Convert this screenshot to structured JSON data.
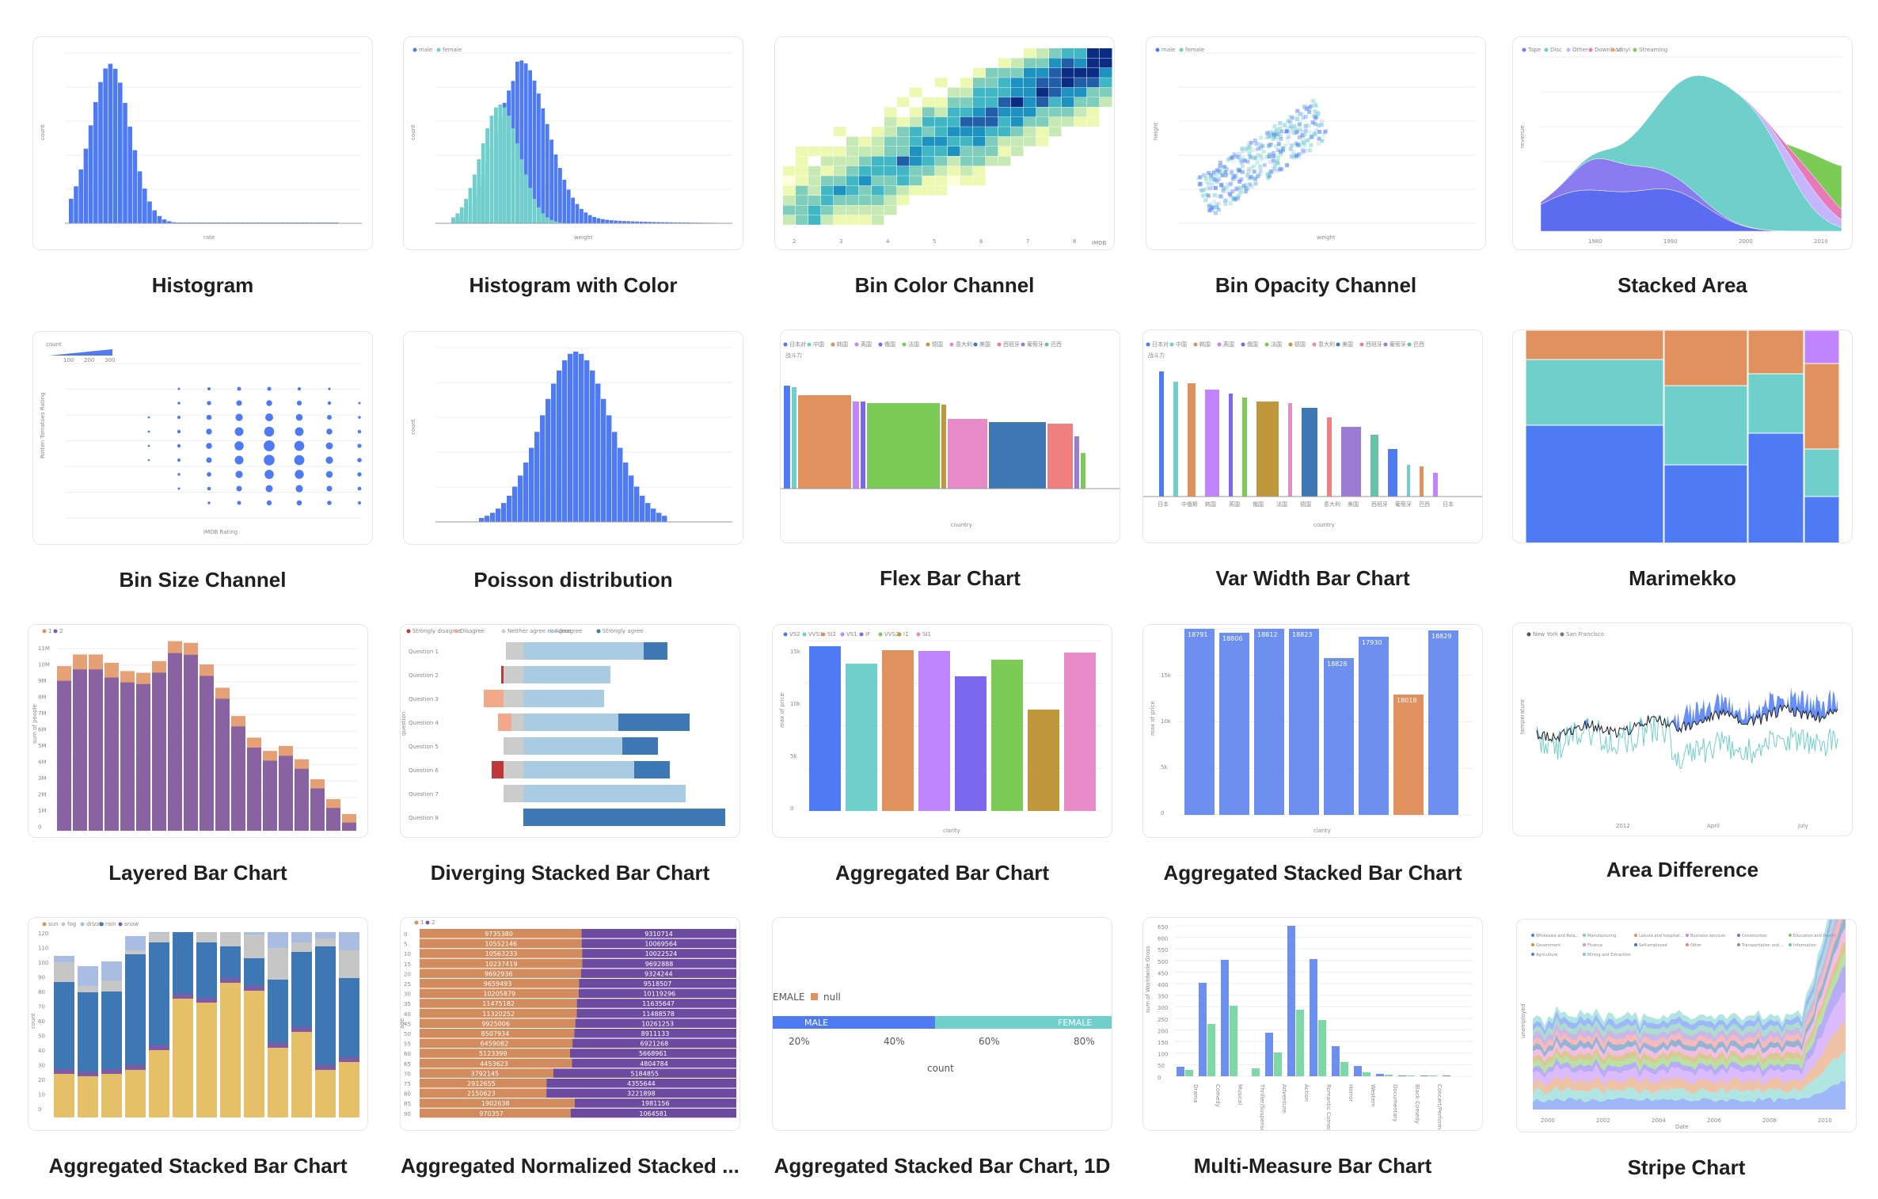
{
  "gallery": {
    "items": [
      {
        "key": "histogram",
        "title": "Histogram"
      },
      {
        "key": "histogram_color",
        "title": "Histogram with Color"
      },
      {
        "key": "bin_color",
        "title": "Bin Color Channel"
      },
      {
        "key": "bin_opacity",
        "title": "Bin Opacity Channel"
      },
      {
        "key": "stacked_area",
        "title": "Stacked Area"
      },
      {
        "key": "bin_size",
        "title": "Bin Size Channel"
      },
      {
        "key": "poisson",
        "title": "Poisson distribution"
      },
      {
        "key": "flex_bar",
        "title": "Flex Bar Chart"
      },
      {
        "key": "var_width_bar",
        "title": "Var Width Bar Chart"
      },
      {
        "key": "marimekko",
        "title": "Marimekko"
      },
      {
        "key": "layered_bar",
        "title": "Layered Bar Chart"
      },
      {
        "key": "diverging_bar",
        "title": "Diverging Stacked Bar Chart"
      },
      {
        "key": "aggregated_bar",
        "title": "Aggregated Bar Chart"
      },
      {
        "key": "agg_stacked_bar",
        "title": "Aggregated Stacked Bar Chart"
      },
      {
        "key": "area_difference",
        "title": "Area Difference"
      },
      {
        "key": "agg_stacked_bar_weather",
        "title": "Aggregated Stacked Bar Chart"
      },
      {
        "key": "agg_normalized_bar",
        "title": "Aggregated Normalized Stacked ..."
      },
      {
        "key": "agg_stacked_bar_1d",
        "title": "Aggregated Stacked Bar Chart, 1D"
      },
      {
        "key": "multi_measure_bar",
        "title": "Multi-Measure Bar Chart"
      },
      {
        "key": "stripe_chart",
        "title": "Stripe Chart"
      }
    ]
  },
  "colors": {
    "blue": "#4e7bf4",
    "teal": "#6fcfcb",
    "orange": "#e0915d",
    "purple": "#7d5ba6",
    "red": "#c0373a",
    "sand": "#e6c069",
    "lightblue": "#a9cce3",
    "darkblue": "#3d77b4"
  },
  "thumbs": {
    "histogram": {
      "x_label": "rate",
      "y_label": "count"
    },
    "histogram_color": {
      "legend": [
        "male",
        "female"
      ],
      "x_label": "weight",
      "y_label": "count"
    },
    "bin_color": {
      "x_ticks": [
        "2",
        "3",
        "4",
        "5",
        "6",
        "7",
        "8"
      ],
      "x_label": "IMDB"
    },
    "bin_opacity": {
      "legend": [
        "male",
        "female"
      ],
      "x_label": "weight",
      "y_label": "height"
    },
    "stacked_area": {
      "legend": [
        "Tape",
        "Disc",
        "Other",
        "Download",
        "Vinyl",
        "Streaming"
      ],
      "x_ticks": [
        "1980",
        "1990",
        "2000",
        "2010"
      ],
      "y_label": "revenue"
    },
    "bin_size": {
      "legend_title": "count",
      "legend_ticks": [
        "100",
        "200",
        "300"
      ],
      "x_label": "IMDB Rating",
      "y_label": "Rotten Tomatoes Rating"
    },
    "poisson": {
      "y_label": "count"
    },
    "flex_bar": {
      "legend": [
        "日本对",
        "中国",
        "韩国",
        "英国",
        "俄国",
        "法国",
        "德国",
        "意大利",
        "美国",
        "西班牙",
        "葡萄牙",
        "巴西"
      ],
      "sublabel": "战斗力",
      "x_label": "country"
    },
    "var_width_bar": {
      "legend": [
        "日本对",
        "中国",
        "韩国",
        "英国",
        "俄国",
        "法国",
        "德国",
        "意大利",
        "美国",
        "西班牙",
        "葡萄牙",
        "巴西"
      ],
      "sublabel": "战斗力",
      "x_label": "country",
      "x_ticks": [
        "日本",
        "中俄斯",
        "韩国",
        "英国",
        "俄国",
        "法国",
        "德国",
        "意大利",
        "美国",
        "西班牙",
        "葡萄牙",
        "巴西",
        "日本"
      ]
    },
    "layered_bar": {
      "legend": [
        "1",
        "2"
      ],
      "y_ticks": [
        "11M",
        "10M",
        "9M",
        "8M",
        "7M",
        "6M",
        "5M",
        "4M",
        "3M",
        "2M",
        "1M",
        "0"
      ],
      "y_label": "sum of people"
    },
    "diverging_bar": {
      "legend": [
        "Strongly disagree",
        "Disagree",
        "Neither agree nor disagree",
        "Agree",
        "Strongly agree"
      ],
      "questions": [
        "Question 1",
        "Question 2",
        "Question 3",
        "Question 4",
        "Question 5",
        "Question 6",
        "Question 7",
        "Question 8"
      ],
      "y_label": "question"
    },
    "aggregated_bar": {
      "legend": [
        "VS2",
        "VVS1",
        "SI2",
        "VS1",
        "IF",
        "VVS2",
        "I1",
        "SI1"
      ],
      "y_label": "max of price",
      "y_ticks": [
        "15k",
        "10k",
        "5k",
        "0"
      ],
      "x_label": "clarity"
    },
    "agg_stacked_bar": {
      "values": [
        "18791",
        "18806",
        "18812",
        "18823",
        "18828",
        "17930",
        "18018",
        "18829"
      ],
      "x_label": "clarity",
      "y_label": "max of price",
      "y_ticks": [
        "15k",
        "10k",
        "5k",
        "0"
      ]
    },
    "area_difference": {
      "legend": [
        "New York",
        "San Francisco"
      ],
      "y_label": "temperature",
      "x_ticks": [
        "2012",
        "April",
        "July"
      ]
    },
    "agg_stacked_bar_weather": {
      "legend": [
        "sun",
        "fog",
        "drizzle",
        "rain",
        "snow"
      ],
      "y_ticks": [
        "120",
        "110",
        "100",
        "90",
        "80",
        "70",
        "60",
        "50",
        "40",
        "30",
        "20",
        "10",
        "0"
      ],
      "y_label": "count"
    },
    "agg_normalized_bar": {
      "legend": [
        "1",
        "2"
      ],
      "ages": [
        "0",
        "5",
        "10",
        "15",
        "20",
        "25",
        "30",
        "35",
        "40",
        "45",
        "50",
        "55",
        "60",
        "65",
        "70",
        "75",
        "80",
        "85",
        "90"
      ],
      "left": [
        "9735380",
        "10552146",
        "10563233",
        "10237419",
        "9692936",
        "9659493",
        "10205879",
        "11475182",
        "11320252",
        "9925006",
        "8507934",
        "6459082",
        "5123399",
        "4453623",
        "3792145",
        "2912655",
        "2150623",
        "1902638",
        "970357"
      ],
      "right": [
        "9310714",
        "10069564",
        "10022524",
        "9692888",
        "9324244",
        "9518507",
        "10119296",
        "11635647",
        "11488578",
        "10261253",
        "8911133",
        "6921268",
        "5668961",
        "4804784",
        "5184855",
        "4355644",
        "3221898",
        "1981156",
        "1064581"
      ],
      "y_label": "age"
    },
    "agg_stacked_bar_1d": {
      "legend_label": "null",
      "legend_fragment": "EMALE",
      "male": "MALE",
      "female": "FEMALE",
      "ticks": [
        "20%",
        "40%",
        "60%",
        "80%"
      ],
      "x_label": "count"
    },
    "multi_measure_bar": {
      "y_ticks": [
        "650",
        "600",
        "550",
        "500",
        "450",
        "400",
        "350",
        "300",
        "250",
        "200",
        "150",
        "100",
        "50",
        "0"
      ],
      "y_label": "sum of Worldwide Gross",
      "genres": [
        "Drama",
        "Comedy",
        "Musical",
        "Thriller/Suspense",
        "Adventure",
        "Action",
        "Romantic Comedy",
        "Horror",
        "Western",
        "Documentary",
        "Black Comedy",
        "Concert/Performance"
      ]
    },
    "stripe_chart": {
      "legend": [
        "Wholesale and Reta...",
        "Manufacturing",
        "Leisure and hospitali...",
        "Business services",
        "Construction",
        "Education and Health",
        "Government",
        "Finance",
        "Self-employed",
        "Other",
        "Transportation and ...",
        "Information",
        "Agriculture",
        "Mining and Extraction"
      ],
      "y_label": "unemployed",
      "x_label": "Date",
      "x_ticks": [
        "2000",
        "2002",
        "2004",
        "2006",
        "2008",
        "2010"
      ]
    }
  }
}
